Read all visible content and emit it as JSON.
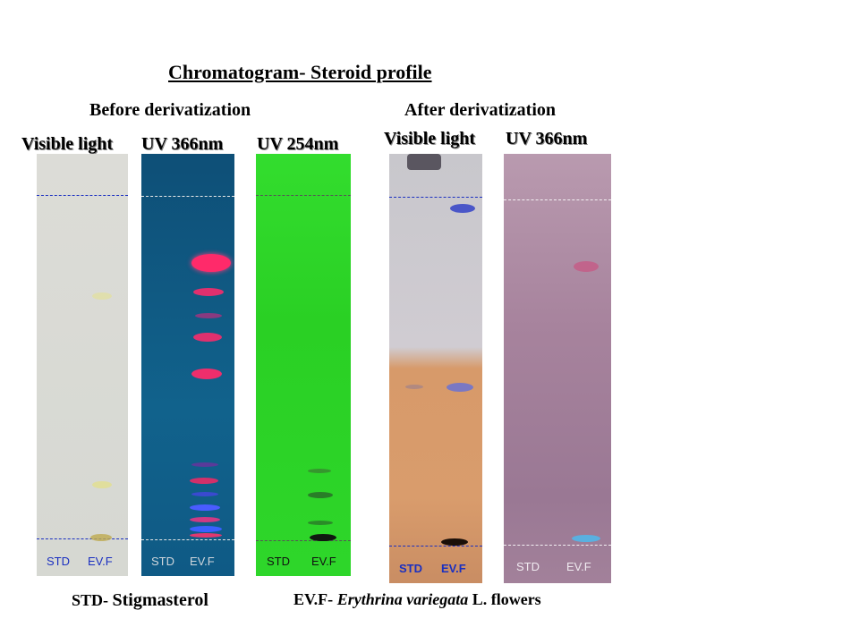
{
  "title": "Chromatogram- Steroid profile",
  "sections": {
    "before": "Before derivatization",
    "after": "After derivatization"
  },
  "plates": [
    {
      "id": "p1",
      "label": "Visible light",
      "std": "STD",
      "evf": "EV.F"
    },
    {
      "id": "p2",
      "label": "UV 366nm",
      "std": "STD",
      "evf": "EV.F"
    },
    {
      "id": "p3",
      "label": "UV 254nm",
      "std": "STD",
      "evf": "EV.F"
    },
    {
      "id": "p4",
      "label": "Visible light",
      "std": "STD",
      "evf": "EV.F"
    },
    {
      "id": "p5",
      "label": "UV 366nm",
      "std": "STD",
      "evf": "EV.F"
    }
  ],
  "legend": {
    "std_abbr": "STD-",
    "std_name": "Stigmasterol",
    "evf_abbr": "EV.F-",
    "evf_species": "Erythrina variegata",
    "evf_rest": "L. flowers"
  },
  "colors": {
    "plate_visible_before": "#d9dbd6",
    "plate_uv366_before": "#0f5a82",
    "plate_uv254": "#2fd62a",
    "plate_visible_after_top": "#cfcbd0",
    "plate_visible_after_bottom": "#d99a6a",
    "plate_uv366_after": "#a27e99"
  }
}
